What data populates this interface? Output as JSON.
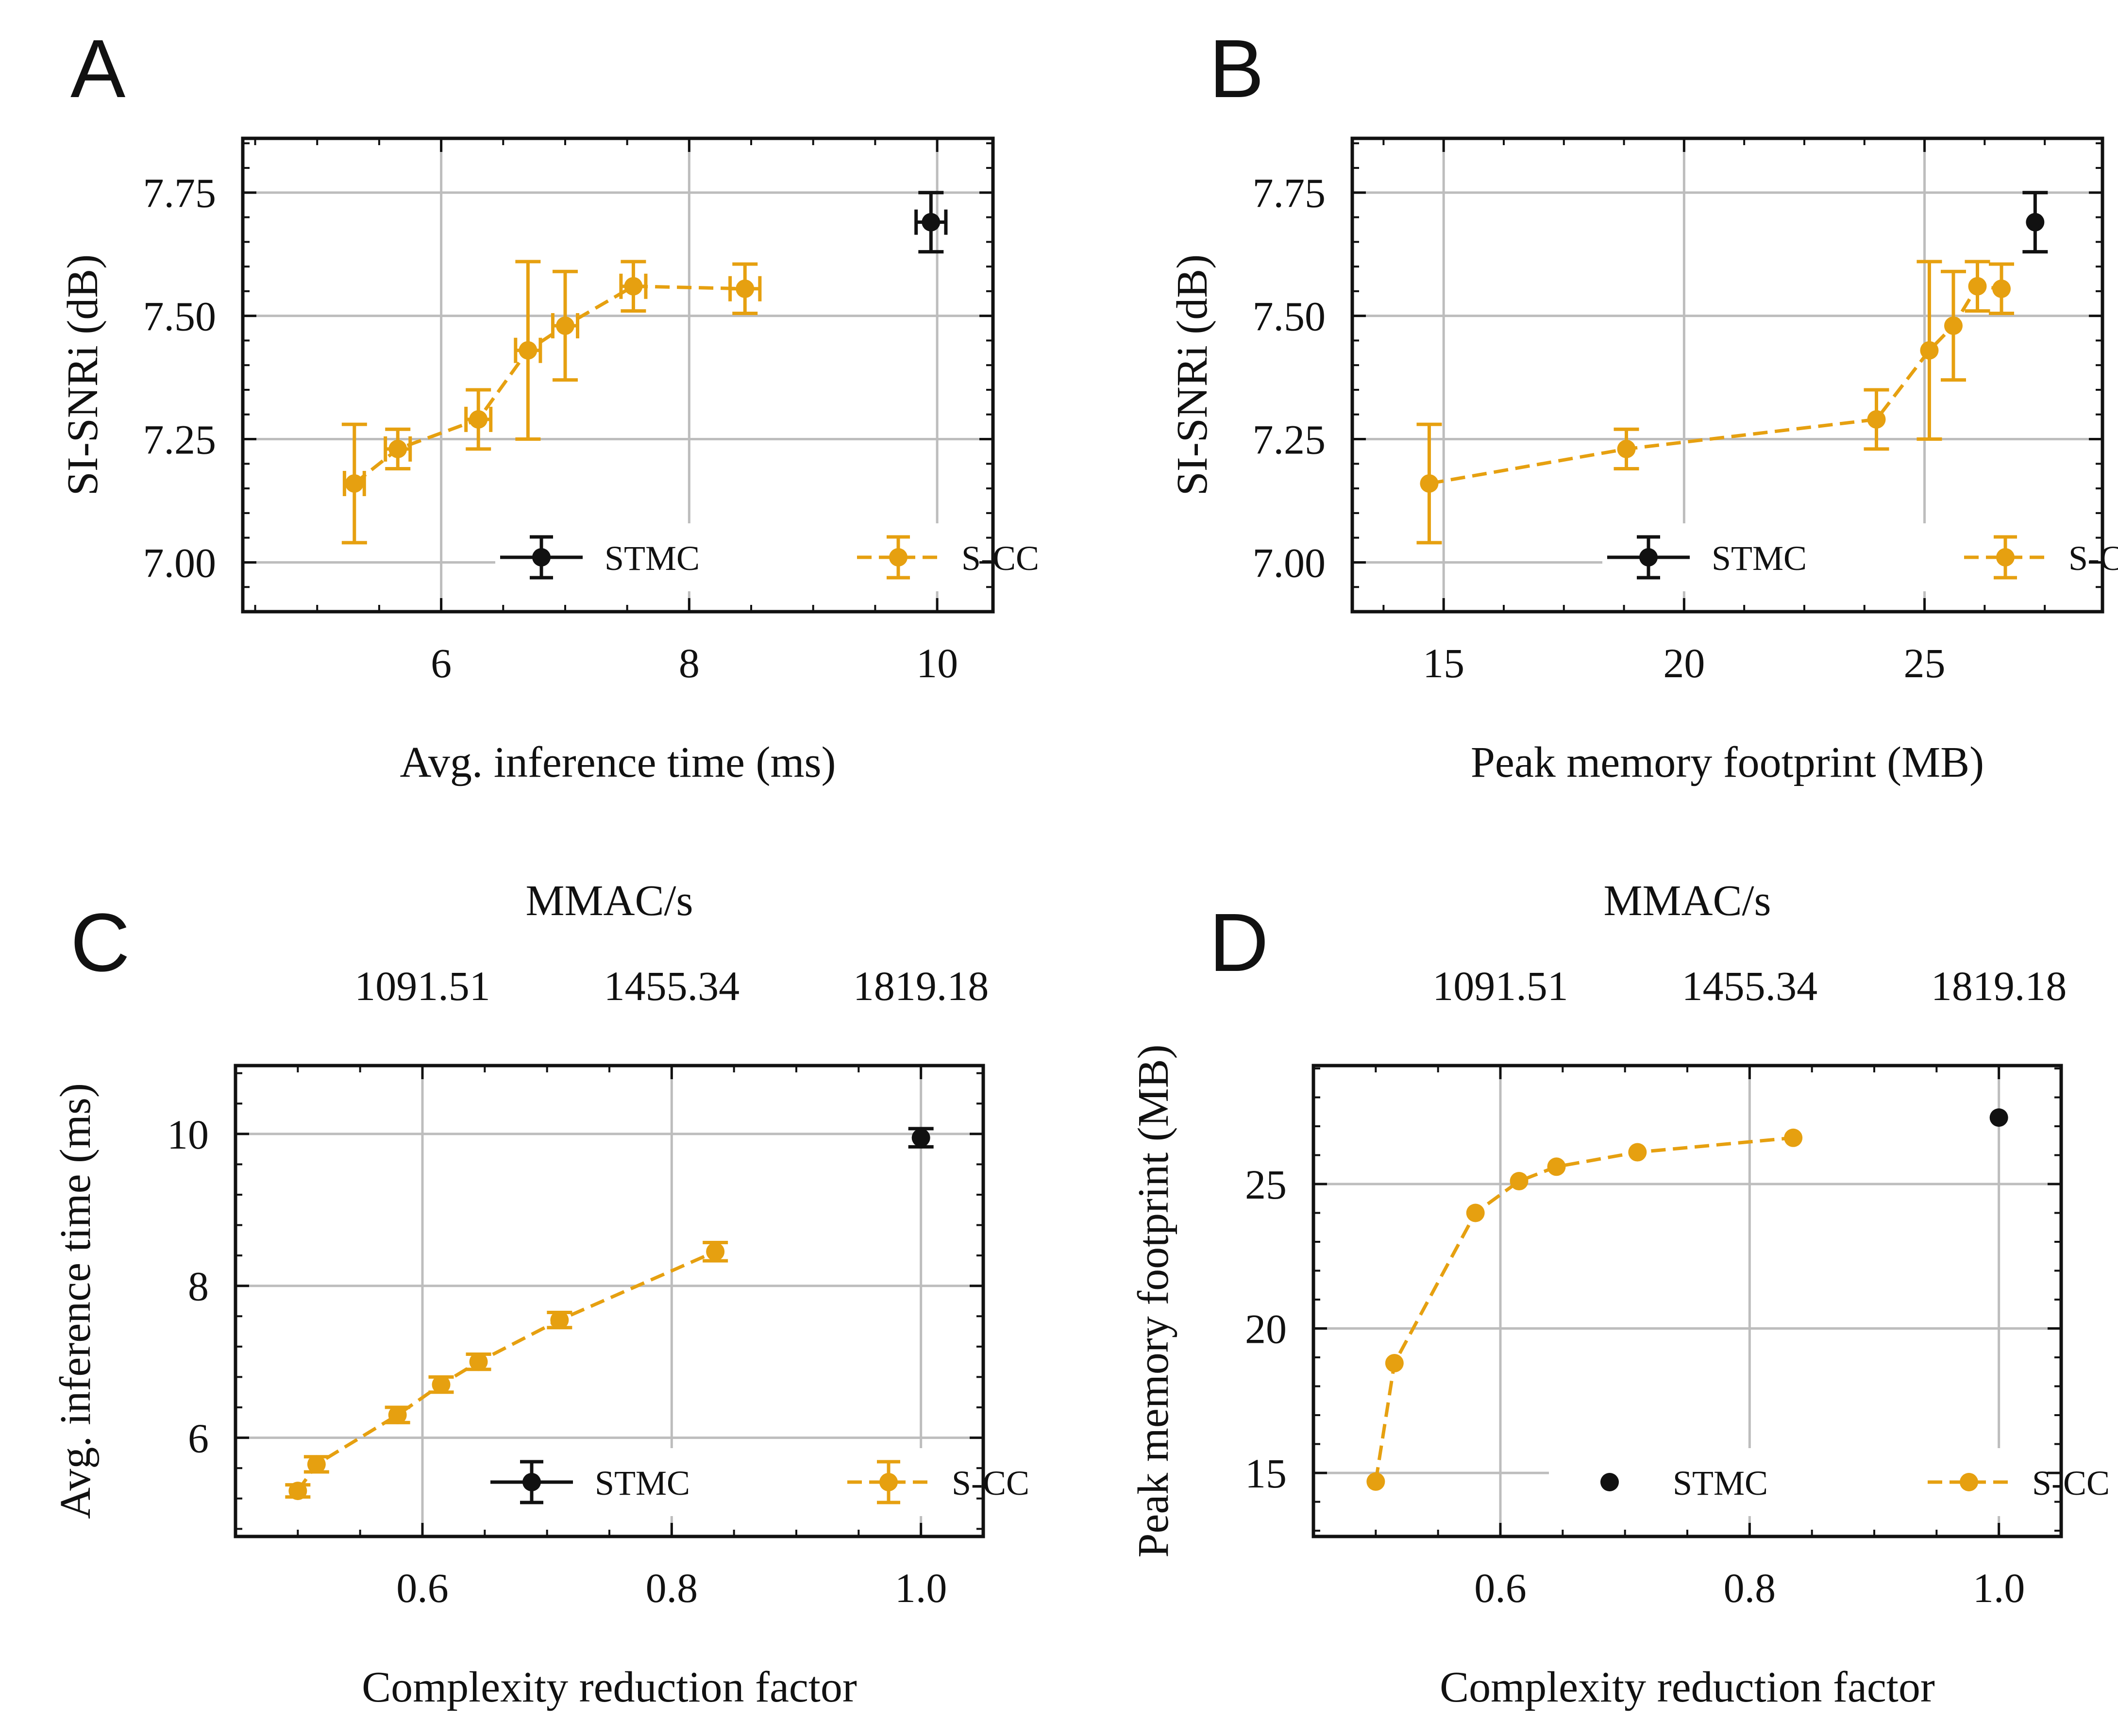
{
  "figure": {
    "panels": [
      "A",
      "B",
      "C",
      "D"
    ],
    "legend": {
      "stmc": "STMC",
      "scc": "S-CC"
    },
    "colors": {
      "stmc": "#111111",
      "scc": "#E6A010",
      "grid": "#BDBDBD",
      "axis": "#111111"
    }
  },
  "chart_data": [
    {
      "panel": "A",
      "type": "scatter",
      "xlabel": "Avg. inference time (ms)",
      "ylabel": "SI-SNRi (dB)",
      "xlim": [
        4.4,
        10.45
      ],
      "ylim": [
        6.9,
        7.86
      ],
      "xticks": [
        6,
        8,
        10
      ],
      "xtick_labels": [
        "6",
        "8",
        "10"
      ],
      "yticks": [
        7.0,
        7.25,
        7.5,
        7.75
      ],
      "ytick_labels": [
        "7.00",
        "7.25",
        "7.50",
        "7.75"
      ],
      "series": [
        {
          "name": "STMC",
          "key": "stmc",
          "line": false,
          "x": [
            9.95
          ],
          "y": [
            7.69
          ],
          "xerr": [
            0.12
          ],
          "yerr": [
            0.06
          ]
        },
        {
          "name": "S-CC",
          "key": "scc",
          "line": true,
          "x": [
            5.3,
            5.65,
            6.3,
            6.7,
            7.0,
            7.55,
            8.45
          ],
          "y": [
            7.16,
            7.23,
            7.29,
            7.43,
            7.48,
            7.56,
            7.555
          ],
          "xerr": [
            0.08,
            0.1,
            0.1,
            0.1,
            0.1,
            0.1,
            0.12
          ],
          "yerr": [
            0.12,
            0.04,
            0.06,
            0.18,
            0.11,
            0.05,
            0.05
          ]
        }
      ]
    },
    {
      "panel": "B",
      "type": "scatter",
      "xlabel": "Peak memory footprint (MB)",
      "ylabel": "SI-SNRi (dB)",
      "xlim": [
        13.1,
        28.7
      ],
      "ylim": [
        6.9,
        7.86
      ],
      "xticks": [
        15,
        20,
        25
      ],
      "xtick_labels": [
        "15",
        "20",
        "25"
      ],
      "yticks": [
        7.0,
        7.25,
        7.5,
        7.75
      ],
      "ytick_labels": [
        "7.00",
        "7.25",
        "7.50",
        "7.75"
      ],
      "series": [
        {
          "name": "STMC",
          "key": "stmc",
          "line": false,
          "x": [
            27.3
          ],
          "y": [
            7.69
          ],
          "xerr": [
            0
          ],
          "yerr": [
            0.06
          ]
        },
        {
          "name": "S-CC",
          "key": "scc",
          "line": true,
          "x": [
            14.7,
            18.8,
            24.0,
            25.1,
            25.6,
            26.1,
            26.6
          ],
          "y": [
            7.16,
            7.23,
            7.29,
            7.43,
            7.48,
            7.56,
            7.555
          ],
          "xerr": [
            0,
            0,
            0,
            0,
            0,
            0,
            0
          ],
          "yerr": [
            0.12,
            0.04,
            0.06,
            0.18,
            0.11,
            0.05,
            0.05
          ]
        }
      ]
    },
    {
      "panel": "C",
      "type": "scatter",
      "xlabel": "Complexity reduction factor",
      "ylabel": "Avg. inference time (ms)",
      "top_axis_label": "MMAC/s",
      "top_ticks": [
        0.6,
        0.8,
        1.0
      ],
      "top_tick_labels": [
        "1091.51",
        "1455.34",
        "1819.18"
      ],
      "xlim": [
        0.45,
        1.05
      ],
      "ylim": [
        4.7,
        10.9
      ],
      "xticks": [
        0.6,
        0.8,
        1.0
      ],
      "xtick_labels": [
        "0.6",
        "0.8",
        "1.0"
      ],
      "yticks": [
        6,
        8,
        10
      ],
      "ytick_labels": [
        "6",
        "8",
        "10"
      ],
      "series": [
        {
          "name": "STMC",
          "key": "stmc",
          "line": false,
          "x": [
            1.0
          ],
          "y": [
            9.95
          ],
          "xerr": [
            0
          ],
          "yerr": [
            0.12
          ]
        },
        {
          "name": "S-CC",
          "key": "scc",
          "line": true,
          "x": [
            0.5,
            0.515,
            0.58,
            0.615,
            0.645,
            0.71,
            0.835
          ],
          "y": [
            5.3,
            5.65,
            6.3,
            6.7,
            7.0,
            7.55,
            8.45
          ],
          "xerr": [
            0,
            0,
            0,
            0,
            0,
            0,
            0
          ],
          "yerr": [
            0.08,
            0.1,
            0.1,
            0.1,
            0.1,
            0.1,
            0.12
          ]
        }
      ]
    },
    {
      "panel": "D",
      "type": "scatter",
      "xlabel": "Complexity reduction factor",
      "ylabel": "Peak memory footprint (MB)",
      "top_axis_label": "MMAC/s",
      "top_ticks": [
        0.6,
        0.8,
        1.0
      ],
      "top_tick_labels": [
        "1091.51",
        "1455.34",
        "1819.18"
      ],
      "xlim": [
        0.45,
        1.05
      ],
      "ylim": [
        12.8,
        29.1
      ],
      "xticks": [
        0.6,
        0.8,
        1.0
      ],
      "xtick_labels": [
        "0.6",
        "0.8",
        "1.0"
      ],
      "yticks": [
        15,
        20,
        25
      ],
      "ytick_labels": [
        "15",
        "20",
        "25"
      ],
      "series": [
        {
          "name": "STMC",
          "key": "stmc",
          "line": false,
          "x": [
            1.0
          ],
          "y": [
            27.3
          ],
          "xerr": [
            0
          ],
          "yerr": [
            0
          ]
        },
        {
          "name": "S-CC",
          "key": "scc",
          "line": true,
          "x": [
            0.5,
            0.515,
            0.58,
            0.615,
            0.645,
            0.71,
            0.835
          ],
          "y": [
            14.7,
            18.8,
            24.0,
            25.1,
            25.6,
            26.1,
            26.6
          ],
          "xerr": [
            0,
            0,
            0,
            0,
            0,
            0,
            0
          ],
          "yerr": [
            0,
            0,
            0,
            0,
            0,
            0,
            0
          ]
        }
      ]
    }
  ]
}
